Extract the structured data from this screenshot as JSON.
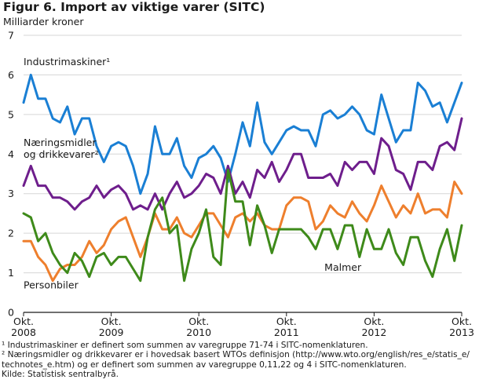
{
  "header": {
    "title": "Figur 6. Import av viktige varer (SITC)",
    "unit": "Milliarder kroner"
  },
  "footnotes": [
    "¹ Industrimaskiner er definert som summen av varegruppe 71-74 i SITC-nomenklaturen.",
    "² Næringsmidler og drikkevarer er i hovedsak basert WTOs definisjon (http://www.wto.org/english/res_e/statis_e/",
    "technotes_e.htm) og er definert som summen av varegruppe 0,11,22 og 4 i SITC-nomenklaturen.",
    "Kilde: Statistisk sentralbyrå."
  ],
  "chart_data": {
    "type": "line",
    "title": "Figur 6. Import av viktige varer (SITC)",
    "ylabel": "Milliarder kroner",
    "xlabel": "",
    "ylim": [
      0,
      7
    ],
    "yticks": [
      "0",
      "1",
      "2",
      "3",
      "4",
      "5",
      "6",
      "7"
    ],
    "x_range": [
      0,
      60
    ],
    "x_ticks": [
      {
        "pos": 0,
        "label1": "Okt.",
        "label2": "2008"
      },
      {
        "pos": 12,
        "label1": "Okt.",
        "label2": "2009"
      },
      {
        "pos": 24,
        "label1": "Okt.",
        "label2": "2010"
      },
      {
        "pos": 36,
        "label1": "Okt.",
        "label2": "2011"
      },
      {
        "pos": 48,
        "label1": "Okt.",
        "label2": "2012"
      },
      {
        "pos": 60,
        "label1": "Okt.",
        "label2": "2013"
      }
    ],
    "grid": true,
    "series": [
      {
        "name": "Industrimaskiner",
        "label_lines": [
          "Industrimaskiner¹"
        ],
        "label_anchor": [
          0,
          6.25
        ],
        "color": "#1a7fd4",
        "values": [
          5.3,
          6.0,
          5.4,
          5.4,
          4.9,
          4.8,
          5.2,
          4.5,
          4.9,
          4.9,
          4.2,
          3.8,
          4.2,
          4.3,
          4.2,
          3.7,
          3.0,
          3.5,
          4.7,
          4.0,
          4.0,
          4.4,
          3.7,
          3.4,
          3.9,
          4.0,
          4.2,
          3.9,
          3.3,
          4.0,
          4.8,
          4.2,
          5.3,
          4.3,
          4.0,
          4.3,
          4.6,
          4.7,
          4.6,
          4.6,
          4.2,
          5.0,
          5.1,
          4.9,
          5.0,
          5.2,
          5.0,
          4.6,
          4.5,
          5.5,
          4.9,
          4.3,
          4.6,
          4.6,
          5.8,
          5.6,
          5.2,
          5.3,
          4.8,
          5.3,
          5.8
        ]
      },
      {
        "name": "Næringsmidler og drikkevarer",
        "label_lines": [
          "Næringsmidler",
          "og drikkevarer²"
        ],
        "label_anchor": [
          0,
          4.2
        ],
        "color": "#6e1e8c",
        "values": [
          3.2,
          3.7,
          3.2,
          3.2,
          2.9,
          2.9,
          2.8,
          2.6,
          2.8,
          2.9,
          3.2,
          2.9,
          3.1,
          3.2,
          3.0,
          2.6,
          2.7,
          2.6,
          3.0,
          2.6,
          3.0,
          3.3,
          2.9,
          3.0,
          3.2,
          3.5,
          3.4,
          3.0,
          3.7,
          3.0,
          3.3,
          2.9,
          3.6,
          3.4,
          3.8,
          3.3,
          3.6,
          4.0,
          4.0,
          3.4,
          3.4,
          3.4,
          3.5,
          3.2,
          3.8,
          3.6,
          3.8,
          3.8,
          3.5,
          4.4,
          4.2,
          3.6,
          3.5,
          3.1,
          3.8,
          3.8,
          3.6,
          4.2,
          4.3,
          4.1,
          4.9
        ]
      },
      {
        "name": "Personbiler",
        "label_lines": [
          "Personbiler"
        ],
        "label_anchor": [
          0,
          0.6
        ],
        "color": "#ee7f2d",
        "values": [
          1.8,
          1.8,
          1.4,
          1.2,
          0.8,
          1.1,
          1.2,
          1.2,
          1.4,
          1.8,
          1.5,
          1.7,
          2.1,
          2.3,
          2.4,
          1.9,
          1.4,
          1.9,
          2.5,
          2.1,
          2.1,
          2.4,
          2.0,
          1.9,
          2.2,
          2.5,
          2.5,
          2.2,
          1.9,
          2.4,
          2.5,
          2.3,
          2.5,
          2.2,
          2.1,
          2.1,
          2.7,
          2.9,
          2.9,
          2.8,
          2.1,
          2.3,
          2.7,
          2.5,
          2.4,
          2.8,
          2.5,
          2.3,
          2.7,
          3.2,
          2.8,
          2.4,
          2.7,
          2.5,
          3.0,
          2.5,
          2.6,
          2.6,
          2.4,
          3.3,
          3.0
        ]
      },
      {
        "name": "Malmer",
        "label_lines": [
          "Malmer"
        ],
        "label_anchor": [
          41.2,
          1.05
        ],
        "color": "#3e8a1a",
        "values": [
          2.5,
          2.4,
          1.8,
          2.0,
          1.5,
          1.2,
          1.0,
          1.5,
          1.3,
          0.9,
          1.4,
          1.5,
          1.2,
          1.4,
          1.4,
          1.1,
          0.8,
          1.9,
          2.6,
          2.9,
          2.0,
          2.2,
          0.8,
          1.6,
          2.0,
          2.6,
          1.4,
          1.2,
          3.6,
          2.8,
          2.8,
          1.7,
          2.7,
          2.2,
          1.5,
          2.1,
          2.1,
          2.1,
          2.1,
          1.9,
          1.6,
          2.1,
          2.1,
          1.6,
          2.2,
          2.2,
          1.4,
          2.1,
          1.6,
          1.6,
          2.1,
          1.5,
          1.2,
          1.9,
          1.9,
          1.3,
          0.9,
          1.6,
          2.1,
          1.3,
          2.2
        ]
      }
    ]
  }
}
